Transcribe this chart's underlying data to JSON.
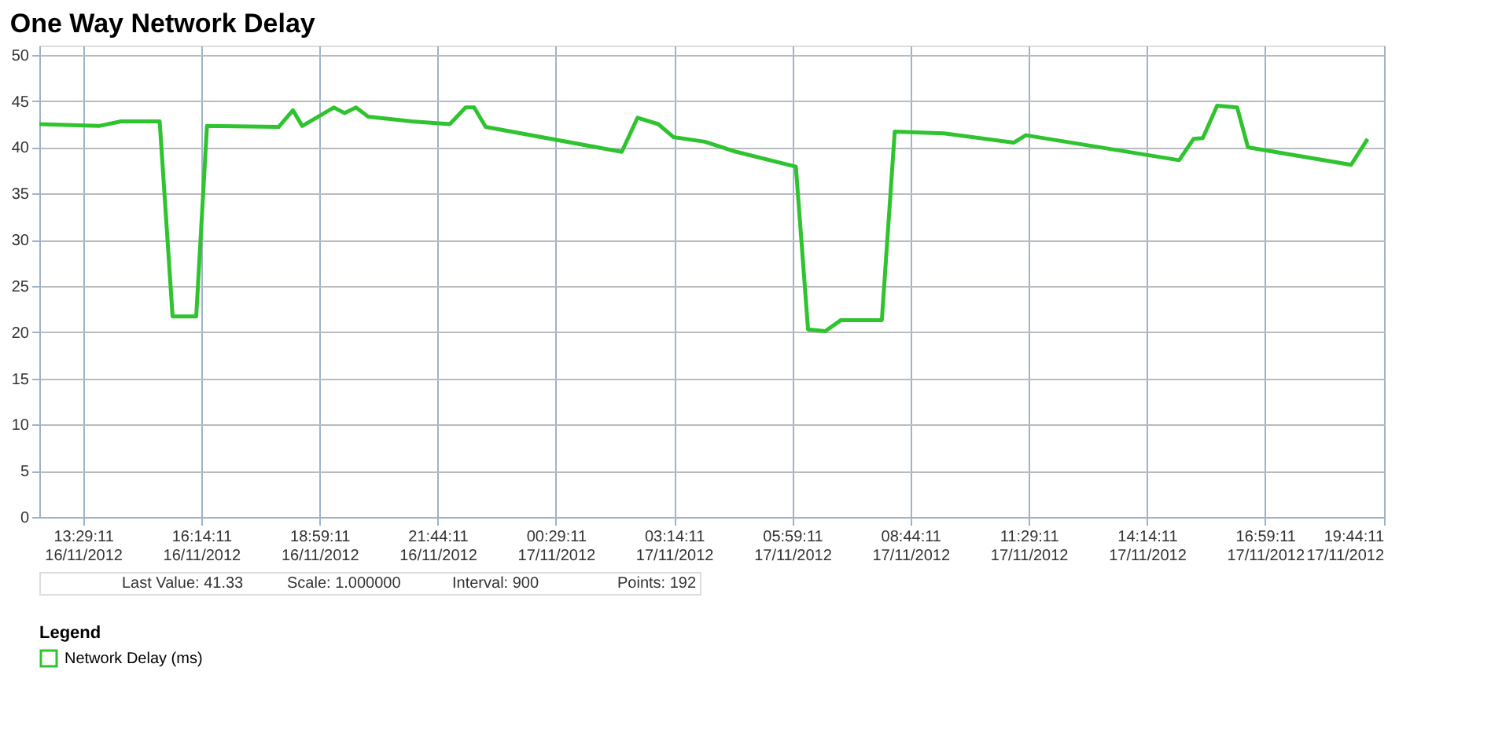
{
  "chart_data": {
    "type": "line",
    "title": "One Way Network Delay",
    "legend_title": "Legend",
    "x": [
      "2012-11-16T12:28",
      "2012-11-16T13:51",
      "2012-11-16T14:22",
      "2012-11-16T15:16",
      "2012-11-16T15:34",
      "2012-11-16T16:07",
      "2012-11-16T16:22",
      "2012-11-16T18:02",
      "2012-11-16T18:22",
      "2012-11-16T18:35",
      "2012-11-16T19:19",
      "2012-11-16T19:34",
      "2012-11-16T19:50",
      "2012-11-16T20:07",
      "2012-11-16T21:08",
      "2012-11-16T22:01",
      "2012-11-16T22:23",
      "2012-11-16T22:35",
      "2012-11-16T22:51",
      "2012-11-17T02:01",
      "2012-11-17T02:23",
      "2012-11-17T02:52",
      "2012-11-17T03:13",
      "2012-11-17T03:57",
      "2012-11-17T04:41",
      "2012-11-17T06:04",
      "2012-11-17T06:21",
      "2012-11-17T06:45",
      "2012-11-17T07:07",
      "2012-11-17T08:04",
      "2012-11-17T08:22",
      "2012-11-17T09:31",
      "2012-11-17T11:08",
      "2012-11-17T11:25",
      "2012-11-17T14:59",
      "2012-11-17T15:19",
      "2012-11-17T15:32",
      "2012-11-17T15:52",
      "2012-11-17T16:20",
      "2012-11-17T16:35",
      "2012-11-17T18:59",
      "2012-11-17T19:22"
    ],
    "series": [
      {
        "name": "Network Delay (ms)",
        "color": "#2fc42f",
        "values": [
          42.5,
          42.3,
          42.8,
          42.8,
          21.7,
          21.7,
          42.3,
          42.2,
          44.0,
          42.3,
          44.3,
          43.7,
          44.3,
          43.3,
          42.8,
          42.5,
          44.3,
          44.3,
          42.2,
          39.5,
          43.2,
          42.5,
          41.1,
          40.6,
          39.5,
          37.9,
          20.3,
          20.1,
          21.3,
          21.3,
          41.7,
          41.5,
          40.5,
          41.3,
          38.6,
          40.9,
          41.0,
          44.5,
          44.3,
          40.0,
          38.1,
          40.9
        ]
      }
    ],
    "xlim": [
      "2012-11-16T12:28",
      "2012-11-17T19:45"
    ],
    "xticks": [
      {
        "value": "2012-11-16T13:29",
        "label": "13:29:11\n16/11/2012"
      },
      {
        "value": "2012-11-16T16:14",
        "label": "16:14:11\n16/11/2012"
      },
      {
        "value": "2012-11-16T18:59",
        "label": "18:59:11\n16/11/2012"
      },
      {
        "value": "2012-11-16T21:44",
        "label": "21:44:11\n16/11/2012"
      },
      {
        "value": "2012-11-17T00:29",
        "label": "00:29:11\n17/11/2012"
      },
      {
        "value": "2012-11-17T03:14",
        "label": "03:14:11\n17/11/2012"
      },
      {
        "value": "2012-11-17T05:59",
        "label": "05:59:11\n17/11/2012"
      },
      {
        "value": "2012-11-17T08:44",
        "label": "08:44:11\n17/11/2012"
      },
      {
        "value": "2012-11-17T11:29",
        "label": "11:29:11\n17/11/2012"
      },
      {
        "value": "2012-11-17T14:14",
        "label": "14:14:11\n17/11/2012"
      },
      {
        "value": "2012-11-17T16:59",
        "label": "16:59:11\n17/11/2012"
      },
      {
        "value": "2012-11-17T19:44",
        "label": "19:44:11\n17/11/2012"
      }
    ],
    "ylim": [
      0,
      51
    ],
    "yticks": [
      0,
      5,
      10,
      15,
      20,
      25,
      30,
      35,
      40,
      45,
      50
    ],
    "grid": true,
    "legend": "bottom",
    "marker": "none",
    "line_style": "solid",
    "annotations": [
      "Last Value: 41.33",
      "Scale: 1.000000",
      "Interval: 900",
      "Points: 192"
    ]
  }
}
